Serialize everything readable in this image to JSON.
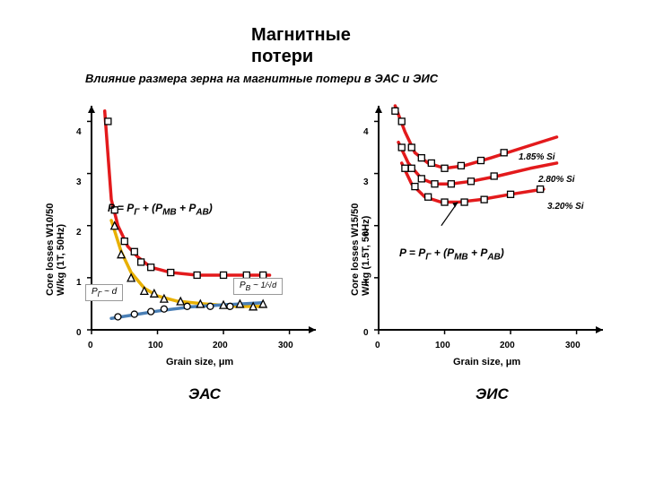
{
  "title": "Магнитные потери",
  "title_fontsize": 20,
  "subtitle": "Влияние размера зерна на магнитные потери в ЭАС и ЭИС",
  "subtitle_fontsize": 13,
  "background_color": "#ffffff",
  "left_chart": {
    "footer": "ЭАС",
    "x_label": "Grain size, μm",
    "y_label": "Core losses W10/50\nW/kg (1T, 50Hz)",
    "xlim": [
      0,
      340
    ],
    "ylim": [
      0,
      4.3
    ],
    "xticks": [
      0,
      100,
      200,
      300
    ],
    "yticks": [
      0,
      1,
      2,
      3,
      4
    ],
    "axis_color": "#000000",
    "formula": "P = P_Г + (P_МВ + P_АВ)",
    "formula_box1": "P_Г ~ d",
    "formula_box2": "P_В ~ 1/√d",
    "series": [
      {
        "name": "red-curve",
        "type": "line",
        "color": "#e31a1c",
        "width": 3.5,
        "points": [
          [
            20,
            4.2
          ],
          [
            30,
            2.5
          ],
          [
            40,
            2.0
          ],
          [
            55,
            1.6
          ],
          [
            70,
            1.4
          ],
          [
            90,
            1.2
          ],
          [
            120,
            1.1
          ],
          [
            160,
            1.05
          ],
          [
            210,
            1.05
          ],
          [
            270,
            1.05
          ]
        ]
      },
      {
        "name": "yellow-curve",
        "type": "line",
        "color": "#e8b000",
        "width": 3.5,
        "points": [
          [
            30,
            2.1
          ],
          [
            45,
            1.5
          ],
          [
            60,
            1.1
          ],
          [
            80,
            0.8
          ],
          [
            100,
            0.65
          ],
          [
            130,
            0.55
          ],
          [
            170,
            0.5
          ],
          [
            220,
            0.45
          ],
          [
            260,
            0.45
          ]
        ]
      },
      {
        "name": "blue-curve",
        "type": "line",
        "color": "#4a7fb5",
        "width": 3.5,
        "points": [
          [
            30,
            0.22
          ],
          [
            60,
            0.28
          ],
          [
            100,
            0.36
          ],
          [
            150,
            0.44
          ],
          [
            200,
            0.48
          ],
          [
            260,
            0.52
          ]
        ]
      },
      {
        "name": "squares",
        "type": "scatter",
        "marker": "square",
        "color": "#000000",
        "fill": "#ffffff",
        "size": 7,
        "points": [
          [
            25,
            4.0
          ],
          [
            35,
            2.3
          ],
          [
            50,
            1.7
          ],
          [
            65,
            1.5
          ],
          [
            75,
            1.3
          ],
          [
            90,
            1.2
          ],
          [
            120,
            1.1
          ],
          [
            160,
            1.05
          ],
          [
            200,
            1.05
          ],
          [
            235,
            1.05
          ],
          [
            260,
            1.05
          ]
        ]
      },
      {
        "name": "triangles",
        "type": "scatter",
        "marker": "triangle",
        "color": "#000000",
        "fill": "#ffffff",
        "size": 8,
        "points": [
          [
            35,
            2.0
          ],
          [
            45,
            1.45
          ],
          [
            60,
            1.0
          ],
          [
            80,
            0.75
          ],
          [
            95,
            0.7
          ],
          [
            110,
            0.6
          ],
          [
            135,
            0.55
          ],
          [
            165,
            0.5
          ],
          [
            200,
            0.48
          ],
          [
            225,
            0.5
          ],
          [
            245,
            0.45
          ],
          [
            260,
            0.5
          ]
        ]
      },
      {
        "name": "circles",
        "type": "scatter",
        "marker": "circle",
        "color": "#000000",
        "fill": "#ffffff",
        "size": 7,
        "points": [
          [
            40,
            0.25
          ],
          [
            65,
            0.3
          ],
          [
            90,
            0.35
          ],
          [
            110,
            0.4
          ],
          [
            145,
            0.45
          ],
          [
            180,
            0.45
          ],
          [
            210,
            0.45
          ]
        ]
      }
    ]
  },
  "right_chart": {
    "footer": "ЭИС",
    "x_label": "Grain size, μm",
    "y_label": "Core losses W15/50\nW/kg (1.5T, 50Hz)",
    "xlim": [
      0,
      340
    ],
    "ylim": [
      0,
      4.3
    ],
    "xticks": [
      0,
      100,
      200,
      300
    ],
    "yticks": [
      0,
      1,
      2,
      3,
      4
    ],
    "axis_color": "#000000",
    "formula": "P = P_Г + (P_МВ + P_АВ)",
    "si_labels": [
      "1.85% Si",
      "2.80% Si",
      "3.20% Si"
    ],
    "series": [
      {
        "name": "si185",
        "type": "line",
        "color": "#e31a1c",
        "width": 3.5,
        "points": [
          [
            25,
            4.3
          ],
          [
            40,
            3.8
          ],
          [
            55,
            3.4
          ],
          [
            75,
            3.2
          ],
          [
            100,
            3.1
          ],
          [
            130,
            3.15
          ],
          [
            170,
            3.3
          ],
          [
            220,
            3.5
          ],
          [
            270,
            3.7
          ]
        ]
      },
      {
        "name": "si280",
        "type": "line",
        "color": "#e31a1c",
        "width": 3.5,
        "points": [
          [
            30,
            3.6
          ],
          [
            45,
            3.2
          ],
          [
            65,
            2.9
          ],
          [
            85,
            2.8
          ],
          [
            110,
            2.8
          ],
          [
            140,
            2.85
          ],
          [
            180,
            2.95
          ],
          [
            230,
            3.1
          ],
          [
            270,
            3.2
          ]
        ]
      },
      {
        "name": "si320",
        "type": "line",
        "color": "#e31a1c",
        "width": 3.5,
        "points": [
          [
            35,
            3.2
          ],
          [
            50,
            2.8
          ],
          [
            70,
            2.55
          ],
          [
            95,
            2.45
          ],
          [
            120,
            2.45
          ],
          [
            155,
            2.5
          ],
          [
            200,
            2.6
          ],
          [
            250,
            2.7
          ]
        ]
      },
      {
        "name": "sq1",
        "type": "scatter",
        "marker": "square",
        "color": "#000000",
        "fill": "#ffffff",
        "size": 7,
        "points": [
          [
            25,
            4.2
          ],
          [
            35,
            4.0
          ],
          [
            50,
            3.5
          ],
          [
            65,
            3.3
          ],
          [
            80,
            3.2
          ],
          [
            100,
            3.1
          ],
          [
            125,
            3.15
          ],
          [
            155,
            3.25
          ],
          [
            190,
            3.4
          ]
        ]
      },
      {
        "name": "sq2",
        "type": "scatter",
        "marker": "square",
        "color": "#000000",
        "fill": "#ffffff",
        "size": 7,
        "points": [
          [
            35,
            3.5
          ],
          [
            50,
            3.1
          ],
          [
            65,
            2.9
          ],
          [
            85,
            2.8
          ],
          [
            110,
            2.8
          ],
          [
            140,
            2.85
          ],
          [
            175,
            2.95
          ]
        ]
      },
      {
        "name": "sq3",
        "type": "scatter",
        "marker": "square",
        "color": "#000000",
        "fill": "#ffffff",
        "size": 7,
        "points": [
          [
            40,
            3.1
          ],
          [
            55,
            2.75
          ],
          [
            75,
            2.55
          ],
          [
            100,
            2.45
          ],
          [
            130,
            2.45
          ],
          [
            160,
            2.5
          ],
          [
            200,
            2.6
          ],
          [
            245,
            2.7
          ]
        ]
      }
    ]
  }
}
